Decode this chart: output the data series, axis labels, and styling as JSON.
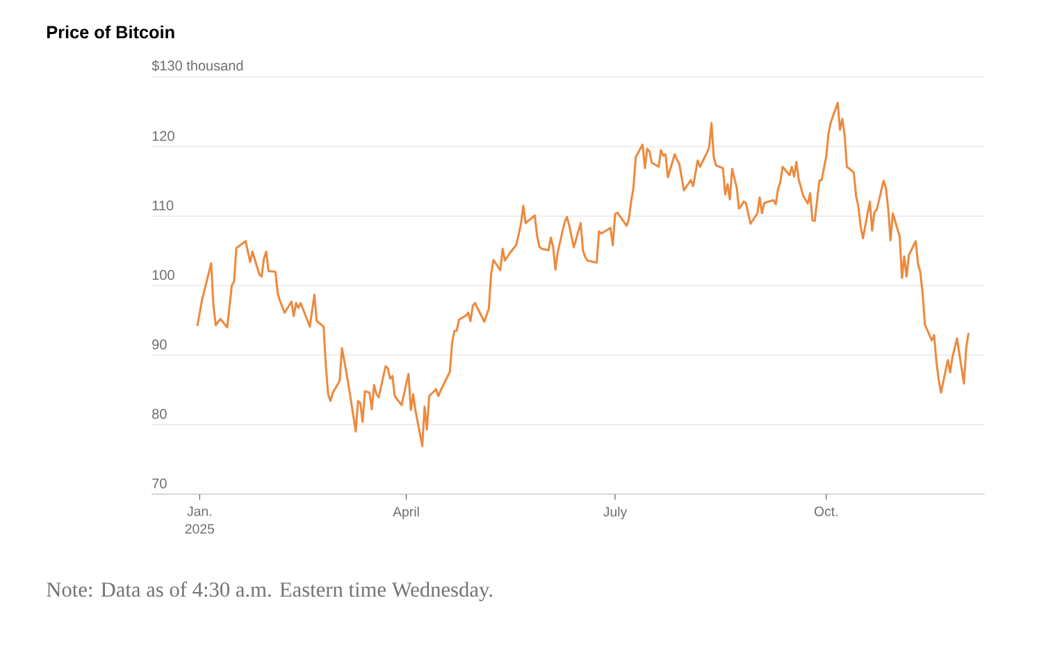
{
  "chart_data": {
    "type": "line",
    "title": "Price of Bitcoin",
    "annotations": [
      "Note: Data as of 4:30 a.m. Eastern time Wednesday."
    ],
    "color": "#ec8a3f",
    "xlim": [
      "2024-12-11",
      "2025-12-09"
    ],
    "xticks": [
      {
        "value": "2025-01-01",
        "label": "Jan. 2025"
      },
      {
        "value": "2025-04-01",
        "label": "April"
      },
      {
        "value": "2025-07-01",
        "label": "July"
      },
      {
        "value": "2025-10-01",
        "label": "Oct."
      }
    ],
    "ylim": [
      70,
      130
    ],
    "yticks": [
      70,
      80,
      90,
      100,
      110,
      120,
      {
        "value": 130,
        "label": "$130 thousand"
      }
    ],
    "grid": "y",
    "x": [
      "2024-12-31",
      "2025-01-02",
      "2025-01-06",
      "2025-01-07",
      "2025-01-08",
      "2025-01-10",
      "2025-01-13",
      "2025-01-15",
      "2025-01-16",
      "2025-01-17",
      "2025-01-21",
      "2025-01-23",
      "2025-01-24",
      "2025-01-27",
      "2025-01-28",
      "2025-01-29",
      "2025-01-30",
      "2025-01-31",
      "2025-02-03",
      "2025-02-04",
      "2025-02-05",
      "2025-02-07",
      "2025-02-10",
      "2025-02-11",
      "2025-02-12",
      "2025-02-13",
      "2025-02-14",
      "2025-02-18",
      "2025-02-20",
      "2025-02-21",
      "2025-02-24",
      "2025-02-25",
      "2025-02-26",
      "2025-02-27",
      "2025-02-28",
      "2025-03-03",
      "2025-03-04",
      "2025-03-06",
      "2025-03-08",
      "2025-03-10",
      "2025-03-11",
      "2025-03-12",
      "2025-03-13",
      "2025-03-14",
      "2025-03-16",
      "2025-03-17",
      "2025-03-18",
      "2025-03-19",
      "2025-03-20",
      "2025-03-23",
      "2025-03-24",
      "2025-03-25",
      "2025-03-26",
      "2025-03-27",
      "2025-03-30",
      "2025-04-01",
      "2025-04-02",
      "2025-04-03",
      "2025-04-04",
      "2025-04-05",
      "2025-04-08",
      "2025-04-09",
      "2025-04-10",
      "2025-04-11",
      "2025-04-14",
      "2025-04-15",
      "2025-04-16",
      "2025-04-20",
      "2025-04-21",
      "2025-04-22",
      "2025-04-23",
      "2025-04-24",
      "2025-04-27",
      "2025-04-28",
      "2025-04-29",
      "2025-04-30",
      "2025-05-01",
      "2025-05-05",
      "2025-05-07",
      "2025-05-08",
      "2025-05-09",
      "2025-05-12",
      "2025-05-13",
      "2025-05-14",
      "2025-05-16",
      "2025-05-19",
      "2025-05-21",
      "2025-05-22",
      "2025-05-23",
      "2025-05-27",
      "2025-05-28",
      "2025-05-29",
      "2025-05-30",
      "2025-06-02",
      "2025-06-03",
      "2025-06-04",
      "2025-06-05",
      "2025-06-06",
      "2025-06-09",
      "2025-06-10",
      "2025-06-11",
      "2025-06-13",
      "2025-06-16",
      "2025-06-17",
      "2025-06-18",
      "2025-06-19",
      "2025-06-23",
      "2025-06-24",
      "2025-06-25",
      "2025-06-29",
      "2025-06-30",
      "2025-07-01",
      "2025-07-02",
      "2025-07-06",
      "2025-07-07",
      "2025-07-08",
      "2025-07-09",
      "2025-07-10",
      "2025-07-13",
      "2025-07-14",
      "2025-07-15",
      "2025-07-16",
      "2025-07-17",
      "2025-07-20",
      "2025-07-21",
      "2025-07-22",
      "2025-07-23",
      "2025-07-24",
      "2025-07-27",
      "2025-07-28",
      "2025-07-29",
      "2025-07-31",
      "2025-08-03",
      "2025-08-04",
      "2025-08-06",
      "2025-08-07",
      "2025-08-10",
      "2025-08-11",
      "2025-08-12",
      "2025-08-13",
      "2025-08-14",
      "2025-08-17",
      "2025-08-18",
      "2025-08-19",
      "2025-08-20",
      "2025-08-21",
      "2025-08-23",
      "2025-08-24",
      "2025-08-25",
      "2025-08-26",
      "2025-08-27",
      "2025-08-29",
      "2025-09-01",
      "2025-09-02",
      "2025-09-03",
      "2025-09-04",
      "2025-09-08",
      "2025-09-09",
      "2025-09-10",
      "2025-09-11",
      "2025-09-12",
      "2025-09-15",
      "2025-09-16",
      "2025-09-17",
      "2025-09-18",
      "2025-09-19",
      "2025-09-21",
      "2025-09-23",
      "2025-09-24",
      "2025-09-25",
      "2025-09-26",
      "2025-09-28",
      "2025-09-29",
      "2025-10-01",
      "2025-10-02",
      "2025-10-03",
      "2025-10-06",
      "2025-10-07",
      "2025-10-08",
      "2025-10-09",
      "2025-10-10",
      "2025-10-13",
      "2025-10-14",
      "2025-10-15",
      "2025-10-16",
      "2025-10-17",
      "2025-10-20",
      "2025-10-21",
      "2025-10-22",
      "2025-10-23",
      "2025-10-26",
      "2025-10-27",
      "2025-10-28",
      "2025-10-29",
      "2025-10-30",
      "2025-11-02",
      "2025-11-03",
      "2025-11-04",
      "2025-11-05",
      "2025-11-06",
      "2025-11-09",
      "2025-11-10",
      "2025-11-11",
      "2025-11-12",
      "2025-11-13",
      "2025-11-16",
      "2025-11-17",
      "2025-11-18",
      "2025-11-19",
      "2025-11-20",
      "2025-11-23",
      "2025-11-24",
      "2025-11-25",
      "2025-11-27",
      "2025-11-30",
      "2025-12-01",
      "2025-12-02"
    ],
    "values": [
      94.2,
      97.9,
      103.2,
      97.1,
      94.3,
      95.2,
      94.0,
      100.0,
      100.6,
      105.4,
      106.4,
      103.4,
      104.9,
      101.6,
      101.3,
      103.9,
      104.9,
      102.1,
      102.0,
      98.9,
      97.8,
      96.1,
      97.7,
      95.6,
      97.5,
      96.8,
      97.5,
      94.1,
      98.7,
      94.9,
      94.1,
      88.3,
      84.3,
      83.4,
      84.6,
      86.3,
      91.0,
      87.4,
      83.3,
      79.0,
      83.4,
      83.1,
      80.4,
      84.8,
      84.6,
      82.2,
      85.7,
      84.4,
      83.9,
      88.4,
      88.1,
      86.6,
      87.0,
      84.1,
      82.8,
      85.9,
      87.3,
      82.1,
      84.4,
      82.1,
      76.9,
      82.6,
      79.3,
      84.1,
      85.1,
      84.1,
      84.9,
      87.6,
      91.8,
      93.5,
      93.5,
      95.1,
      95.7,
      96.1,
      94.9,
      97.1,
      97.5,
      94.8,
      96.7,
      101.7,
      103.7,
      102.2,
      105.3,
      103.6,
      104.6,
      105.9,
      108.9,
      111.5,
      109.0,
      110.1,
      107.2,
      105.6,
      105.3,
      105.1,
      106.9,
      105.6,
      102.3,
      104.8,
      109.1,
      109.9,
      108.7,
      105.5,
      109.0,
      105.1,
      104.1,
      103.6,
      103.3,
      107.8,
      107.5,
      108.3,
      105.8,
      110.3,
      110.5,
      108.6,
      109.6,
      112.1,
      114.1,
      118.5,
      120.3,
      116.9,
      119.7,
      119.3,
      117.7,
      117.1,
      119.5,
      118.7,
      118.9,
      115.6,
      118.9,
      118.1,
      117.5,
      113.7,
      115.2,
      114.3,
      118.0,
      117.1,
      119.1,
      119.9,
      123.4,
      118.5,
      117.3,
      116.9,
      113.1,
      114.6,
      112.4,
      116.8,
      114.1,
      111.1,
      111.5,
      112.1,
      111.9,
      108.9,
      110.4,
      112.7,
      110.4,
      111.9,
      112.3,
      111.7,
      113.9,
      114.9,
      117.1,
      115.9,
      117.1,
      115.7,
      117.8,
      115.3,
      112.9,
      111.8,
      113.3,
      109.4,
      109.3,
      115.1,
      115.2,
      118.6,
      121.9,
      123.5,
      126.3,
      122.4,
      124.0,
      121.7,
      117.1,
      116.3,
      112.9,
      111.4,
      108.5,
      106.8,
      112.1,
      107.9,
      110.6,
      110.9,
      115.1,
      114.1,
      111.1,
      106.5,
      110.4,
      107.1,
      101.1,
      104.2,
      101.3,
      104.4,
      106.4,
      103.1,
      101.9,
      98.9,
      94.4,
      92.1,
      92.9,
      89.1,
      86.5,
      84.6,
      89.3,
      87.5,
      89.7,
      92.4,
      85.9,
      91.1,
      93.2
    ]
  }
}
